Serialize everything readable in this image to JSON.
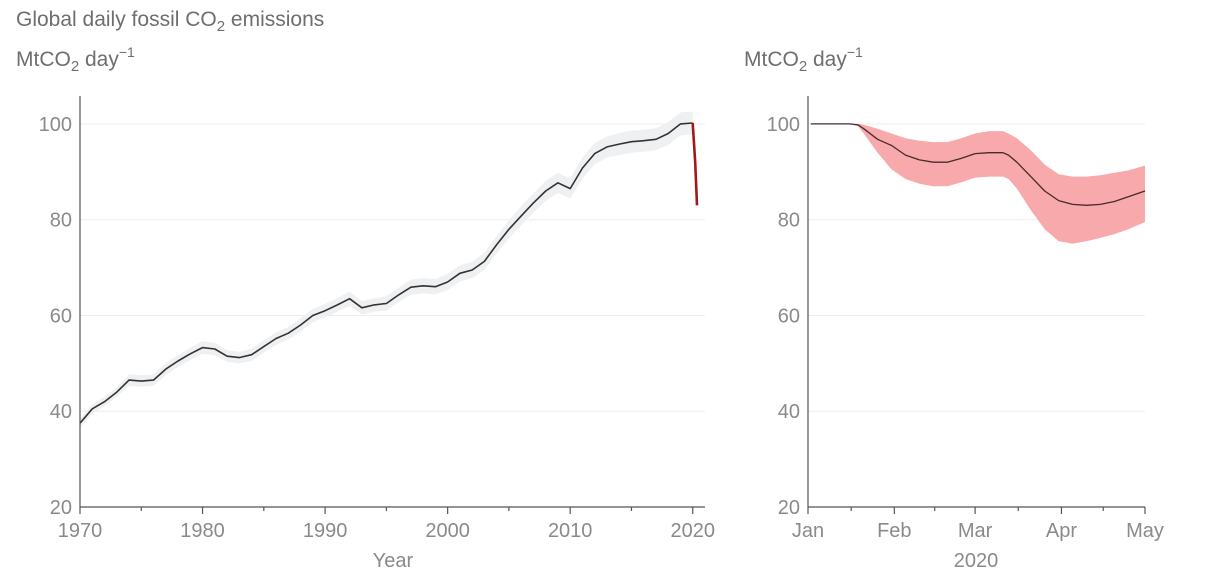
{
  "figure_title": {
    "prefix": "Global daily fossil CO",
    "sub": "2",
    "suffix": " emissions"
  },
  "colors": {
    "annual_line": "#333333",
    "annual_band": "#eef0f2",
    "drop_line": "#a01818",
    "daily_line": "#4a2a2a",
    "daily_band": "#f7a9ab"
  },
  "chart_data": [
    {
      "type": "line",
      "unit_label": {
        "prefix": "MtCO",
        "sub": "2",
        "mid": " day",
        "sup": "−1"
      },
      "xlabel": "Year",
      "ylabel": "MtCO2 day−1",
      "xlim": [
        1970,
        2021
      ],
      "ylim": [
        20,
        105
      ],
      "yticks": [
        20,
        40,
        60,
        80,
        100
      ],
      "xticks": [
        1970,
        1980,
        1990,
        2000,
        2010,
        2020
      ],
      "xtick_labels": [
        "1970",
        "1980",
        "1990",
        "2000",
        "2010",
        "2020"
      ],
      "grid": true,
      "series": [
        {
          "x": [
            1970,
            1971,
            1972,
            1973,
            1974,
            1975,
            1976,
            1977,
            1978,
            1979,
            1980,
            1981,
            1982,
            1983,
            1984,
            1985,
            1986,
            1987,
            1988,
            1989,
            1990,
            1991,
            1992,
            1993,
            1994,
            1995,
            1996,
            1997,
            1998,
            1999,
            2000,
            2001,
            2002,
            2003,
            2004,
            2005,
            2006,
            2007,
            2008,
            2009,
            2010,
            2011,
            2012,
            2013,
            2014,
            2015,
            2016,
            2017,
            2018,
            2019,
            2020
          ],
          "y": [
            37.5,
            40.5,
            42.0,
            44.0,
            46.5,
            46.3,
            46.5,
            48.8,
            50.5,
            52.0,
            53.3,
            53.0,
            51.5,
            51.2,
            51.8,
            53.5,
            55.2,
            56.3,
            58.0,
            60.0,
            61.0,
            62.2,
            63.5,
            61.6,
            62.2,
            62.5,
            64.3,
            65.9,
            66.2,
            66.0,
            67.0,
            68.8,
            69.5,
            71.3,
            74.8,
            78.0,
            80.8,
            83.5,
            86.0,
            87.7,
            86.5,
            90.8,
            93.8,
            95.2,
            95.8,
            96.3,
            96.5,
            96.8,
            98.0,
            100.0,
            100.2
          ],
          "lower": [
            36.5,
            39.5,
            41.0,
            43.0,
            45.3,
            45.1,
            45.3,
            47.5,
            49.3,
            50.7,
            52.0,
            51.7,
            50.3,
            50.0,
            50.5,
            52.2,
            53.9,
            55.0,
            56.6,
            58.6,
            59.6,
            60.8,
            62.0,
            60.2,
            60.8,
            61.0,
            62.8,
            64.3,
            64.6,
            64.4,
            65.3,
            67.1,
            67.8,
            69.5,
            73.0,
            76.1,
            78.8,
            81.5,
            83.9,
            85.6,
            84.4,
            88.6,
            91.6,
            93.0,
            93.5,
            94.0,
            94.2,
            94.5,
            95.6,
            97.6,
            97.8
          ],
          "upper": [
            38.5,
            41.5,
            43.0,
            45.0,
            47.7,
            47.5,
            47.7,
            50.1,
            51.7,
            53.3,
            54.6,
            54.3,
            52.7,
            52.4,
            53.1,
            54.8,
            56.5,
            57.6,
            59.4,
            61.4,
            62.4,
            63.6,
            65.0,
            63.0,
            63.6,
            64.0,
            65.8,
            67.5,
            67.8,
            67.6,
            68.7,
            70.5,
            71.2,
            73.1,
            76.6,
            79.9,
            82.8,
            85.5,
            88.1,
            89.8,
            88.6,
            93.0,
            96.0,
            97.4,
            98.1,
            98.6,
            98.8,
            99.1,
            100.4,
            102.4,
            102.6
          ]
        },
        {
          "x": [
            2020.0,
            2020.2,
            2020.35
          ],
          "y": [
            100.2,
            92.0,
            83.0
          ]
        }
      ]
    },
    {
      "type": "line",
      "unit_label": {
        "prefix": "MtCO",
        "sub": "2",
        "mid": " day",
        "sup": "−1"
      },
      "xlabel": "2020",
      "ylabel": "MtCO2 day−1",
      "xlim": [
        0,
        121
      ],
      "ylim": [
        20,
        105
      ],
      "yticks": [
        20,
        40,
        60,
        80,
        100
      ],
      "xticks": [
        0,
        31,
        60,
        91,
        121
      ],
      "xtick_labels": [
        "Jan",
        "Feb",
        "Mar",
        "Apr",
        "May"
      ],
      "grid": true,
      "series": [
        {
          "x": [
            1,
            5,
            10,
            15,
            18,
            20,
            25,
            30,
            35,
            40,
            45,
            50,
            55,
            60,
            65,
            70,
            72,
            75,
            80,
            85,
            90,
            95,
            100,
            105,
            110,
            115,
            121
          ],
          "y": [
            100,
            100,
            100,
            100,
            99.8,
            99.0,
            96.8,
            95.5,
            93.5,
            92.5,
            92.0,
            92.0,
            92.8,
            93.8,
            94.0,
            94.0,
            93.5,
            92.0,
            89.0,
            86.0,
            84.0,
            83.2,
            83.0,
            83.2,
            83.8,
            84.8,
            86.0
          ],
          "lower": [
            100,
            100,
            100,
            100,
            99.5,
            98.0,
            94.0,
            90.5,
            88.5,
            87.5,
            87.0,
            87.0,
            87.8,
            88.8,
            89.0,
            89.0,
            88.5,
            86.5,
            82.0,
            78.0,
            75.5,
            75.0,
            75.5,
            76.2,
            77.0,
            78.0,
            79.5
          ],
          "upper": [
            100,
            100,
            100,
            100,
            100,
            99.8,
            99.0,
            98.0,
            97.0,
            96.5,
            96.2,
            96.2,
            97.0,
            98.0,
            98.5,
            98.5,
            98.0,
            97.0,
            94.5,
            91.5,
            89.5,
            89.0,
            89.0,
            89.3,
            89.8,
            90.3,
            91.3
          ]
        }
      ]
    }
  ]
}
